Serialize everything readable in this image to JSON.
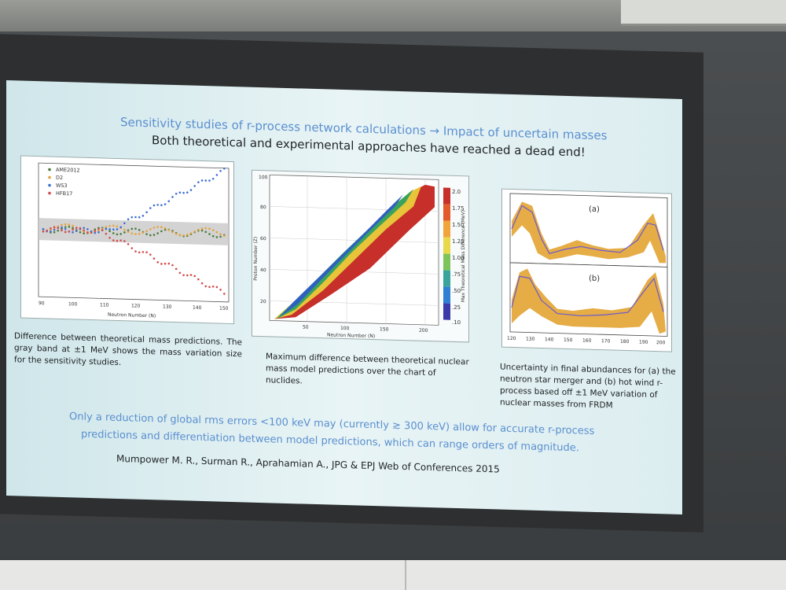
{
  "slide": {
    "title_line1": "Sensitivity studies of r-process network calculations → Impact of uncertain masses",
    "title_line2": "Both theoretical and experimental approaches have reached a dead end!",
    "panel1": {
      "legend": [
        "AME2012",
        "D2",
        "WS3",
        "HFB17"
      ],
      "legend_colors": [
        "#4a7a3a",
        "#e6a23a",
        "#3c6fd6",
        "#d44a4a"
      ],
      "x_ticks": [
        "90",
        "100",
        "110",
        "120",
        "130",
        "140",
        "150"
      ],
      "x_label": "Neutron Number (N)",
      "caption": "Difference between theoretical mass predictions. The gray band at ±1 MeV shows the mass variation size for the sensitivity studies."
    },
    "panel2": {
      "y_ticks": [
        "100",
        "80",
        "60",
        "40",
        "20"
      ],
      "x_ticks": [
        "50",
        "100",
        "150",
        "200"
      ],
      "x_label": "Neutron Number (N)",
      "y_label": "Proton Number (Z)",
      "colorbar_ticks": [
        "2.0",
        "1.75",
        "1.50",
        "1.25",
        "1.00",
        ".75",
        ".50",
        ".25",
        ".10"
      ],
      "colorbar_label": "Max Theoretical Mass Difference (MeV)",
      "caption": "Maximum difference between theoretical nuclear mass model predictions over the chart of nuclides."
    },
    "panel3": {
      "label_a": "(a)",
      "label_b": "(b)",
      "x_ticks": [
        "120",
        "130",
        "140",
        "150",
        "160",
        "170",
        "180",
        "190",
        "200"
      ],
      "caption": "Uncertainty in final abundances for (a) the neutron star merger and (b) hot wind r-process based off ±1 MeV variation of nuclear masses from FRDM"
    },
    "bottom_line1": "Only a reduction of global rms errors <100 keV may (currently ≳ 300 keV) allow for accurate r-process",
    "bottom_line2": "predictions and differentiation between model predictions, which can range orders of magnitude.",
    "citation": "Mumpower M. R., Surman R., Aprahamian A., JPG & EPJ Web of Conferences 2015"
  }
}
